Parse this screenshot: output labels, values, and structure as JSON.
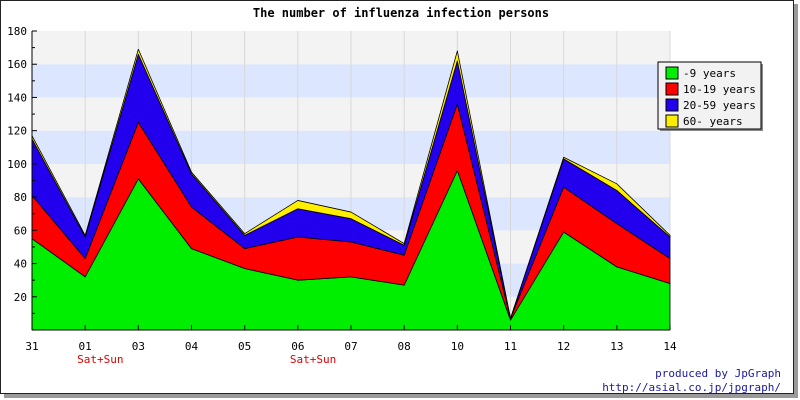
{
  "credit": {
    "line1": "produced by JpGraph",
    "line2": "http://asial.co.jp/jpgraph/"
  },
  "chart_data": {
    "type": "area",
    "stacked": true,
    "title": "The number of influenza infection persons",
    "xlabel": "",
    "ylabel": "",
    "categories": [
      "31",
      "01",
      "03",
      "04",
      "05",
      "06",
      "07",
      "08",
      "10",
      "11",
      "12",
      "13",
      "14"
    ],
    "sublabels": [
      "",
      "Sat+Sun",
      "",
      "",
      "",
      "Sat+Sun",
      "",
      "",
      "",
      "",
      "",
      "",
      ""
    ],
    "ylim": [
      0,
      180
    ],
    "yticks": [
      20,
      40,
      60,
      80,
      100,
      120,
      140,
      160,
      180
    ],
    "grid": true,
    "legend_position": "top-right",
    "series": [
      {
        "name": "-9 years",
        "color": "#00ee00",
        "values": [
          55,
          32,
          91,
          49,
          37,
          30,
          32,
          27,
          96,
          6,
          59,
          38,
          28
        ]
      },
      {
        "name": "10-19 years",
        "color": "#ff0000",
        "values": [
          26,
          11,
          34,
          25,
          12,
          26,
          21,
          18,
          40,
          1,
          27,
          26,
          15
        ]
      },
      {
        "name": "20-59 years",
        "color": "#2200ee",
        "values": [
          34,
          13,
          41,
          20,
          8,
          17,
          14,
          6,
          26,
          0,
          17,
          20,
          13
        ]
      },
      {
        "name": "60- years",
        "color": "#ffee00",
        "values": [
          2,
          1,
          3,
          1,
          1,
          5,
          4,
          1,
          6,
          0,
          1,
          4,
          1
        ]
      }
    ]
  }
}
